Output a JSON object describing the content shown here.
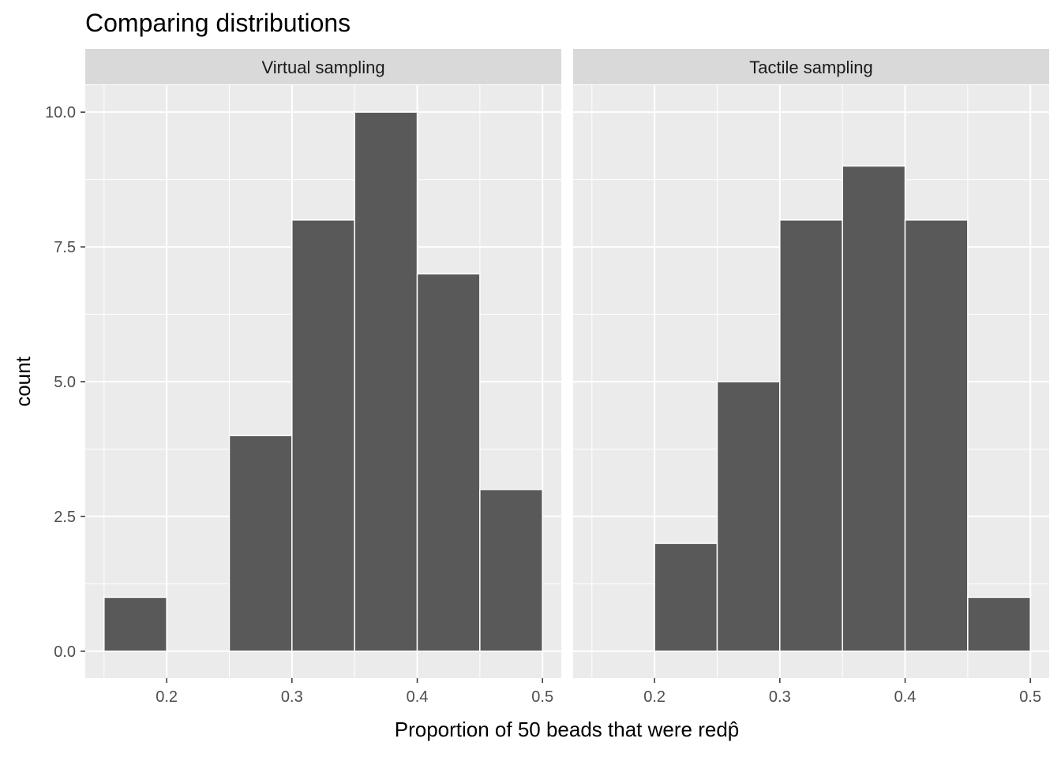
{
  "chart_data": {
    "type": "bar",
    "title": "Comparing distributions",
    "xlabel": "Proportion of 50 beads that were red",
    "xlabel_symbol": "p̂",
    "ylabel": "count",
    "xlim": [
      0.135,
      0.515
    ],
    "ylim": [
      -0.5,
      10.5
    ],
    "x_ticks": [
      {
        "value": 0.2,
        "label": "0.2"
      },
      {
        "value": 0.3,
        "label": "0.3"
      },
      {
        "value": 0.4,
        "label": "0.4"
      },
      {
        "value": 0.5,
        "label": "0.5"
      }
    ],
    "y_ticks": [
      {
        "value": 0.0,
        "label": "0.0"
      },
      {
        "value": 2.5,
        "label": "2.5"
      },
      {
        "value": 5.0,
        "label": "5.0"
      },
      {
        "value": 7.5,
        "label": "7.5"
      },
      {
        "value": 10.0,
        "label": "10.0"
      }
    ],
    "bin_width": 0.05,
    "grid": true,
    "colors": {
      "panel_bg": "#ebebeb",
      "strip_bg": "#d9d9d9",
      "bar_fill": "#595959",
      "bar_outline": "#ffffff",
      "grid": "#ffffff"
    },
    "facets": [
      {
        "label": "Virtual sampling",
        "bins": [
          {
            "x0": 0.15,
            "x1": 0.2,
            "count": 1
          },
          {
            "x0": 0.2,
            "x1": 0.25,
            "count": 0
          },
          {
            "x0": 0.25,
            "x1": 0.3,
            "count": 4
          },
          {
            "x0": 0.3,
            "x1": 0.35,
            "count": 8
          },
          {
            "x0": 0.35,
            "x1": 0.4,
            "count": 10
          },
          {
            "x0": 0.4,
            "x1": 0.45,
            "count": 7
          },
          {
            "x0": 0.45,
            "x1": 0.5,
            "count": 3
          }
        ]
      },
      {
        "label": "Tactile sampling",
        "bins": [
          {
            "x0": 0.2,
            "x1": 0.25,
            "count": 2
          },
          {
            "x0": 0.25,
            "x1": 0.3,
            "count": 5
          },
          {
            "x0": 0.3,
            "x1": 0.35,
            "count": 8
          },
          {
            "x0": 0.35,
            "x1": 0.4,
            "count": 9
          },
          {
            "x0": 0.4,
            "x1": 0.45,
            "count": 8
          },
          {
            "x0": 0.45,
            "x1": 0.5,
            "count": 1
          }
        ]
      }
    ]
  }
}
